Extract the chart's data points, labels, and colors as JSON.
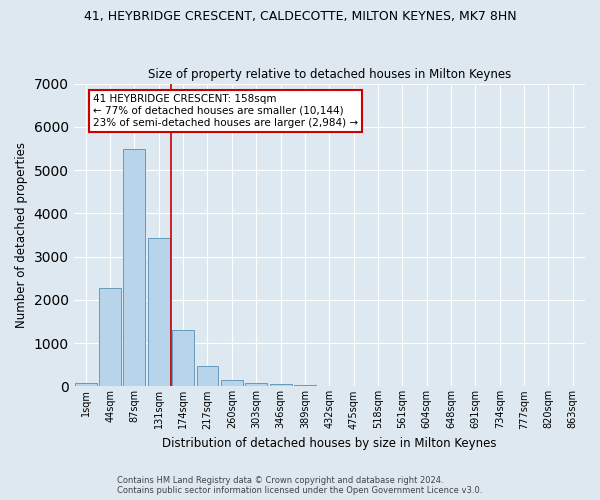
{
  "title1": "41, HEYBRIDGE CRESCENT, CALDECOTTE, MILTON KEYNES, MK7 8HN",
  "title2": "Size of property relative to detached houses in Milton Keynes",
  "xlabel": "Distribution of detached houses by size in Milton Keynes",
  "ylabel": "Number of detached properties",
  "footnote1": "Contains HM Land Registry data © Crown copyright and database right 2024.",
  "footnote2": "Contains public sector information licensed under the Open Government Licence v3.0.",
  "bar_labels": [
    "1sqm",
    "44sqm",
    "87sqm",
    "131sqm",
    "174sqm",
    "217sqm",
    "260sqm",
    "303sqm",
    "346sqm",
    "389sqm",
    "432sqm",
    "475sqm",
    "518sqm",
    "561sqm",
    "604sqm",
    "648sqm",
    "691sqm",
    "734sqm",
    "777sqm",
    "820sqm",
    "863sqm"
  ],
  "bar_values": [
    80,
    2280,
    5480,
    3440,
    1310,
    460,
    155,
    85,
    55,
    35,
    0,
    0,
    0,
    0,
    0,
    0,
    0,
    0,
    0,
    0,
    0
  ],
  "bar_color": "#b8d4ea",
  "bar_edge_color": "#6699bb",
  "background_color": "#dde8f0",
  "fig_background_color": "#dde8f0",
  "grid_color": "#ffffff",
  "red_line_index": 3.5,
  "annotation_text": "41 HEYBRIDGE CRESCENT: 158sqm\n← 77% of detached houses are smaller (10,144)\n23% of semi-detached houses are larger (2,984) →",
  "annotation_box_color": "#ffffff",
  "annotation_border_color": "#cc0000",
  "red_line_color": "#cc0000",
  "ylim": [
    0,
    7000
  ],
  "yticks": [
    0,
    1000,
    2000,
    3000,
    4000,
    5000,
    6000,
    7000
  ]
}
